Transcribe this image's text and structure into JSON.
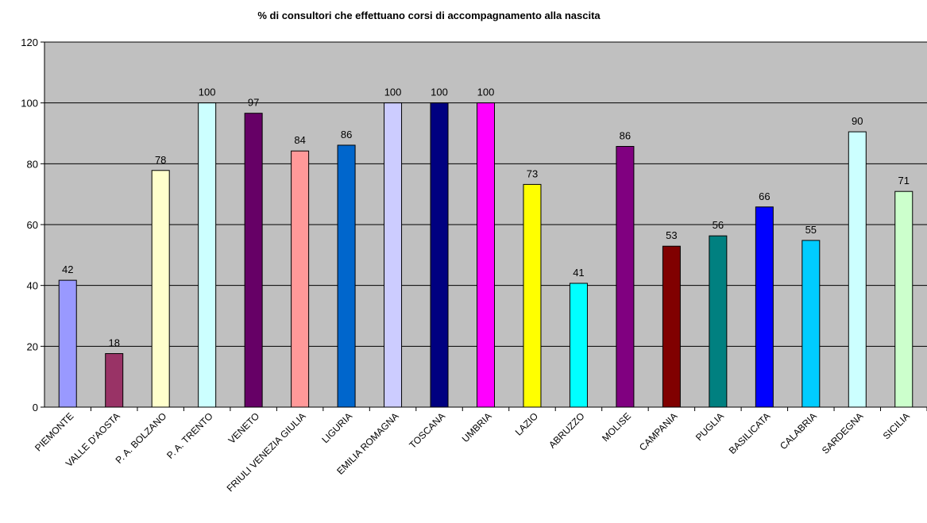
{
  "chart_data": {
    "type": "bar",
    "title": "%  di consultori che effettuano corsi di accompagnamento alla nascita",
    "xlabel": "",
    "ylabel": "",
    "ylim": [
      0,
      120
    ],
    "yticks": [
      "0",
      "20",
      "40",
      "60",
      "80",
      "100",
      "120"
    ],
    "grid": true,
    "plot_background": "#c0c0c0",
    "categories": [
      "PIEMONTE",
      "VALLE D'AOSTA",
      "P. A. BOLZANO",
      "P. A. TRENTO",
      "VENETO",
      "FRIULI VENEZIA GIULIA",
      "LIGURIA",
      "EMILIA ROMAGNA",
      "TOSCANA",
      "UMBRIA",
      "LAZIO",
      "ABRUZZO",
      "MOLISE",
      "CAMPANIA",
      "PUGLIA",
      "BASILICATA",
      "CALABRIA",
      "SARDEGNA",
      "SICILIA"
    ],
    "values": [
      41.7,
      17.6,
      77.8,
      100,
      96.6,
      84.2,
      86.1,
      100,
      100,
      100,
      73.2,
      40.7,
      85.7,
      52.9,
      56.3,
      65.8,
      54.8,
      90.5,
      70.9
    ],
    "data_labels": [
      "42",
      "18",
      "78",
      "100",
      "97",
      "84",
      "86",
      "100",
      "100",
      "100",
      "73",
      "41",
      "86",
      "53",
      "56",
      "66",
      "55",
      "90",
      "71"
    ],
    "colors": [
      "#9999ff",
      "#993366",
      "#ffffcc",
      "#ccffff",
      "#660066",
      "#ff9999",
      "#0066cc",
      "#ccccff",
      "#000080",
      "#ff00ff",
      "#ffff00",
      "#00ffff",
      "#800080",
      "#800000",
      "#008080",
      "#0000ff",
      "#00ccff",
      "#ccffff",
      "#ccffcc"
    ]
  }
}
